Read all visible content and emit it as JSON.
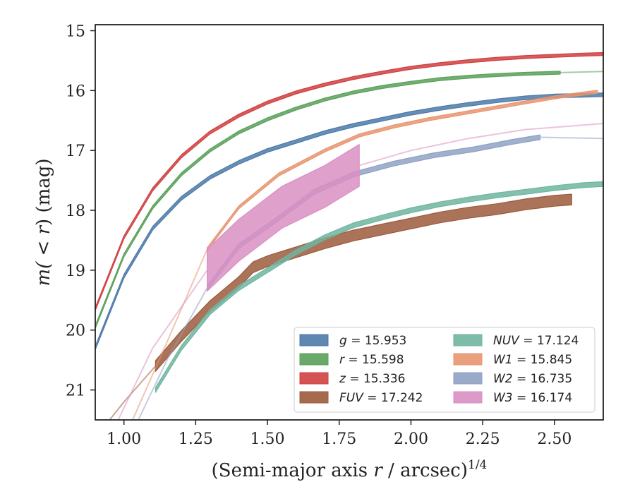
{
  "chart_data": {
    "type": "line",
    "xlabel": "(Semi-major axis r / arcsec)",
    "xlabel_var": "r",
    "xlabel_prefix": "(Semi-major axis ",
    "xlabel_suffix": " / arcsec)",
    "xlabel_exp": "1/4",
    "ylabel_prefix": "m(",
    "ylabel_mid": " < r",
    "ylabel_suffix": ") (mag)",
    "xlim": [
      0.9,
      2.67
    ],
    "ylim": [
      21.5,
      14.9
    ],
    "y_inverted": true,
    "xticks": [
      1.0,
      1.25,
      1.5,
      1.75,
      2.0,
      2.25,
      2.5
    ],
    "xtick_labels": [
      "1.00",
      "1.25",
      "1.50",
      "1.75",
      "2.00",
      "2.25",
      "2.50"
    ],
    "yticks": [
      15,
      16,
      17,
      18,
      19,
      20,
      21
    ],
    "ytick_labels": [
      "15",
      "16",
      "17",
      "18",
      "19",
      "20",
      "21"
    ],
    "grid": false,
    "legend_position": "lower-right",
    "legend_columns": 2,
    "series": [
      {
        "name": "g = 15.953",
        "var": "g",
        "value": "15.953",
        "color": "#4c7aa8",
        "band_mag": 0.06,
        "data": [
          [
            0.9,
            20.3
          ],
          [
            1.0,
            19.1
          ],
          [
            1.1,
            18.3
          ],
          [
            1.2,
            17.8
          ],
          [
            1.3,
            17.45
          ],
          [
            1.4,
            17.2
          ],
          [
            1.5,
            17.0
          ],
          [
            1.6,
            16.85
          ],
          [
            1.7,
            16.7
          ],
          [
            1.8,
            16.58
          ],
          [
            1.9,
            16.48
          ],
          [
            2.0,
            16.38
          ],
          [
            2.1,
            16.3
          ],
          [
            2.2,
            16.23
          ],
          [
            2.3,
            16.17
          ],
          [
            2.4,
            16.12
          ],
          [
            2.5,
            16.09
          ],
          [
            2.6,
            16.08
          ],
          [
            2.67,
            16.07
          ]
        ],
        "fit": []
      },
      {
        "name": "r = 15.598",
        "var": "r",
        "value": "15.598",
        "color": "#5aa05a",
        "band_mag": 0.05,
        "data": [
          [
            0.9,
            19.95
          ],
          [
            1.0,
            18.75
          ],
          [
            1.1,
            17.95
          ],
          [
            1.2,
            17.4
          ],
          [
            1.3,
            17.0
          ],
          [
            1.4,
            16.7
          ],
          [
            1.5,
            16.48
          ],
          [
            1.6,
            16.3
          ],
          [
            1.7,
            16.15
          ],
          [
            1.8,
            16.03
          ],
          [
            1.9,
            15.94
          ],
          [
            2.0,
            15.87
          ],
          [
            2.1,
            15.81
          ],
          [
            2.2,
            15.77
          ],
          [
            2.3,
            15.74
          ],
          [
            2.4,
            15.72
          ],
          [
            2.52,
            15.7
          ]
        ],
        "fit": [
          [
            2.52,
            15.7
          ],
          [
            2.67,
            15.68
          ]
        ]
      },
      {
        "name": "z = 15.336",
        "var": "z",
        "value": "15.336",
        "color": "#d04040",
        "band_mag": 0.05,
        "data": [
          [
            0.9,
            19.65
          ],
          [
            1.0,
            18.45
          ],
          [
            1.1,
            17.65
          ],
          [
            1.2,
            17.1
          ],
          [
            1.3,
            16.7
          ],
          [
            1.4,
            16.42
          ],
          [
            1.5,
            16.2
          ],
          [
            1.6,
            16.03
          ],
          [
            1.7,
            15.9
          ],
          [
            1.8,
            15.79
          ],
          [
            1.9,
            15.7
          ],
          [
            2.0,
            15.62
          ],
          [
            2.1,
            15.56
          ],
          [
            2.2,
            15.51
          ],
          [
            2.3,
            15.47
          ],
          [
            2.4,
            15.44
          ],
          [
            2.5,
            15.42
          ],
          [
            2.6,
            15.4
          ],
          [
            2.67,
            15.39
          ]
        ],
        "fit": []
      },
      {
        "name": "FUV = 17.242",
        "var": "FUV",
        "value": "17.242",
        "color": "#9c5b3c",
        "band_mag": 0.18,
        "data": [
          [
            1.11,
            20.6
          ],
          [
            1.2,
            20.1
          ],
          [
            1.3,
            19.6
          ],
          [
            1.4,
            19.2
          ],
          [
            1.45,
            18.95
          ],
          [
            1.5,
            18.85
          ],
          [
            1.6,
            18.7
          ],
          [
            1.7,
            18.55
          ],
          [
            1.8,
            18.42
          ],
          [
            1.9,
            18.32
          ],
          [
            2.0,
            18.22
          ],
          [
            2.1,
            18.12
          ],
          [
            2.2,
            18.04
          ],
          [
            2.3,
            17.98
          ],
          [
            2.4,
            17.9
          ],
          [
            2.5,
            17.84
          ],
          [
            2.56,
            17.82
          ]
        ],
        "fit": [
          [
            0.95,
            21.5
          ],
          [
            1.0,
            21.2
          ],
          [
            1.11,
            20.6
          ]
        ]
      },
      {
        "name": "NUV = 17.124",
        "var": "NUV",
        "value": "17.124",
        "color": "#6fb5a0",
        "band_mag": 0.08,
        "data": [
          [
            1.11,
            21.0
          ],
          [
            1.2,
            20.3
          ],
          [
            1.3,
            19.7
          ],
          [
            1.4,
            19.3
          ],
          [
            1.5,
            19.0
          ],
          [
            1.6,
            18.7
          ],
          [
            1.7,
            18.45
          ],
          [
            1.8,
            18.25
          ],
          [
            1.9,
            18.12
          ],
          [
            2.0,
            18.0
          ],
          [
            2.1,
            17.9
          ],
          [
            2.2,
            17.82
          ],
          [
            2.3,
            17.75
          ],
          [
            2.4,
            17.69
          ],
          [
            2.5,
            17.63
          ],
          [
            2.6,
            17.58
          ],
          [
            2.67,
            17.56
          ]
        ],
        "fit": []
      },
      {
        "name": "W1 = 15.845",
        "var": "W1",
        "value": "15.845",
        "color": "#e89570",
        "band_mag": 0.05,
        "data": [
          [
            1.29,
            18.65
          ],
          [
            1.4,
            17.95
          ],
          [
            1.54,
            17.4
          ],
          [
            1.7,
            17.0
          ],
          [
            1.82,
            16.75
          ],
          [
            1.94,
            16.6
          ],
          [
            2.06,
            16.48
          ],
          [
            2.18,
            16.38
          ],
          [
            2.3,
            16.28
          ],
          [
            2.42,
            16.18
          ],
          [
            2.52,
            16.1
          ],
          [
            2.65,
            16.02
          ]
        ],
        "fit": [
          [
            1.03,
            21.5
          ],
          [
            1.15,
            20.2
          ],
          [
            1.29,
            18.65
          ]
        ]
      },
      {
        "name": "W2 = 16.735",
        "var": "W2",
        "value": "16.735",
        "color": "#8fa2c4",
        "band_mag": 0.08,
        "data": [
          [
            1.29,
            19.3
          ],
          [
            1.4,
            18.6
          ],
          [
            1.52,
            18.2
          ],
          [
            1.66,
            17.7
          ],
          [
            1.8,
            17.4
          ],
          [
            1.94,
            17.22
          ],
          [
            2.08,
            17.08
          ],
          [
            2.22,
            16.98
          ],
          [
            2.35,
            16.86
          ],
          [
            2.45,
            16.78
          ]
        ],
        "fit": [
          [
            1.05,
            21.5
          ],
          [
            1.15,
            20.5
          ],
          [
            1.29,
            19.3
          ]
        ],
        "fit2": [
          [
            2.45,
            16.78
          ],
          [
            2.67,
            16.8
          ]
        ]
      },
      {
        "name": "W3 = 16.174",
        "var": "W3",
        "value": "16.174",
        "color": "#d98fc2",
        "band_mag": 0.7,
        "data": [
          [
            1.29,
            19.0
          ],
          [
            1.4,
            18.5
          ],
          [
            1.55,
            17.95
          ],
          [
            1.7,
            17.6
          ],
          [
            1.82,
            17.25
          ]
        ],
        "fit": [
          [
            0.98,
            21.5
          ],
          [
            1.1,
            20.3
          ],
          [
            1.29,
            19.0
          ]
        ],
        "fit2": [
          [
            1.82,
            17.25
          ],
          [
            2.0,
            17.0
          ],
          [
            2.2,
            16.8
          ],
          [
            2.4,
            16.65
          ],
          [
            2.67,
            16.55
          ]
        ]
      }
    ]
  }
}
